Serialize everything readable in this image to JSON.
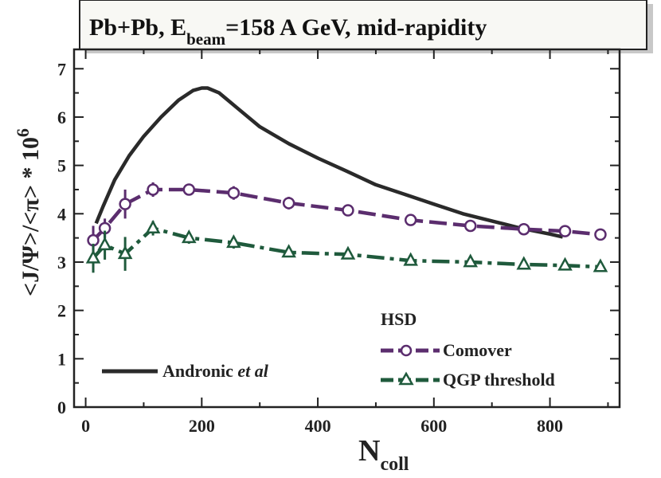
{
  "chart_data": {
    "type": "line",
    "title": {
      "prefix": "Pb+Pb, E",
      "subscript": "beam",
      "suffix": "=158 A GeV, mid-rapidity"
    },
    "xlabel": {
      "main": "N",
      "subscript": "coll"
    },
    "ylabel": "<J/Ψ>/<π> * 10",
    "ylabel_superscript": "6",
    "xlim": [
      -20,
      920
    ],
    "ylim": [
      0,
      7.4
    ],
    "x_ticks": [
      0,
      200,
      400,
      600,
      800
    ],
    "y_ticks": [
      0,
      1,
      2,
      3,
      4,
      5,
      6,
      7
    ],
    "legend_group_label": "HSD",
    "series": [
      {
        "name": "Comover",
        "style": "dashed",
        "marker": "circle",
        "color": "#5b2d6e",
        "x": [
          13,
          33,
          68,
          116,
          178,
          255,
          350,
          452,
          560,
          663,
          755,
          826,
          887
        ],
        "y": [
          3.45,
          3.7,
          4.2,
          4.5,
          4.5,
          4.43,
          4.22,
          4.07,
          3.87,
          3.75,
          3.68,
          3.64,
          3.57
        ],
        "err": [
          0.3,
          0.2,
          0.3,
          0.15,
          0.12,
          0.14,
          0.13,
          0.12,
          0.1,
          0.1,
          0.1,
          0.1,
          0.1
        ]
      },
      {
        "name": "QGP threshold",
        "style": "dash-dot",
        "marker": "triangle",
        "color": "#1f5a3c",
        "x": [
          13,
          33,
          68,
          116,
          178,
          255,
          350,
          452,
          560,
          663,
          755,
          826,
          887
        ],
        "y": [
          3.08,
          3.35,
          3.17,
          3.7,
          3.5,
          3.4,
          3.2,
          3.16,
          3.03,
          3.0,
          2.95,
          2.93,
          2.9
        ],
        "err": [
          0.3,
          0.3,
          0.35,
          0.15,
          0.12,
          0.12,
          0.1,
          0.1,
          0.1,
          0.1,
          0.1,
          0.1,
          0.1
        ]
      },
      {
        "name": "Andronic",
        "name_italic_suffix": "et al",
        "style": "solid",
        "marker": "none",
        "color": "#2a2a2a",
        "x": [
          18,
          30,
          50,
          75,
          100,
          130,
          160,
          185,
          200,
          210,
          230,
          260,
          300,
          350,
          400,
          450,
          500,
          550,
          600,
          650,
          700,
          750,
          800,
          822
        ],
        "y": [
          3.8,
          4.15,
          4.7,
          5.2,
          5.6,
          6.0,
          6.35,
          6.55,
          6.6,
          6.6,
          6.5,
          6.2,
          5.8,
          5.45,
          5.15,
          4.88,
          4.6,
          4.4,
          4.2,
          4.0,
          3.85,
          3.7,
          3.58,
          3.52
        ]
      }
    ]
  }
}
